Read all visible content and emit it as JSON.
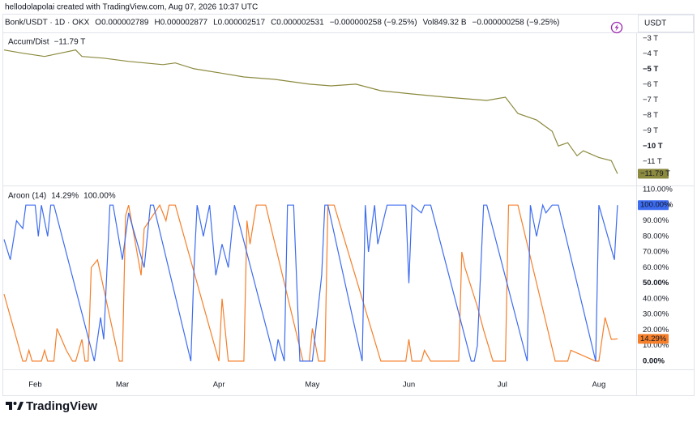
{
  "header": {
    "credit": "hellodolapolai created with TradingView.com, Aug 07, 2026 10:37 UTC",
    "symbol_line": [
      "Bonk/USDT · 1D · OKX",
      "O0.000002789",
      "H0.000002877",
      "L0.000002517",
      "C0.000002531",
      "−0.000000258 (−9.25%)",
      "Vol849.32 B",
      "−0.000000258 (−9.25%)"
    ],
    "currency": "USDT"
  },
  "footer": {
    "brand": "TradingView"
  },
  "chart_data": [
    {
      "type": "line",
      "title": "Accum/Dist",
      "grid": false,
      "xlim": [
        0,
        203
      ],
      "ylim": [
        -12.5,
        -2.7
      ],
      "yticks": [
        {
          "value": -3,
          "label": "−3 T"
        },
        {
          "value": -4,
          "label": "−4 T"
        },
        {
          "value": -5,
          "label": "−5 T",
          "bold": true
        },
        {
          "value": -6,
          "label": "−6 T"
        },
        {
          "value": -7,
          "label": "−7 T"
        },
        {
          "value": -8,
          "label": "−8 T"
        },
        {
          "value": -9,
          "label": "−9 T"
        },
        {
          "value": -10,
          "label": "−10 T",
          "bold": true
        },
        {
          "value": -11,
          "label": "−11 T"
        }
      ],
      "series": [
        {
          "color": "#8c8a3f",
          "last_value_label": "−11.79 T",
          "x": [
            0,
            6,
            13,
            23,
            25,
            32,
            40,
            51,
            55,
            61,
            69,
            77,
            87,
            98,
            105,
            113,
            121,
            131,
            142,
            155,
            161,
            165,
            171,
            176,
            178,
            181,
            184,
            186,
            191,
            195,
            197
          ],
          "values": [
            -3.74,
            -3.95,
            -4.16,
            -3.74,
            -4.16,
            -4.27,
            -4.48,
            -4.69,
            -4.58,
            -4.96,
            -5.22,
            -5.49,
            -5.65,
            -5.96,
            -6.07,
            -5.96,
            -6.39,
            -6.6,
            -6.81,
            -7.02,
            -6.81,
            -7.87,
            -8.29,
            -9.03,
            -9.98,
            -9.77,
            -10.62,
            -10.3,
            -10.73,
            -10.94,
            -11.79
          ]
        }
      ]
    },
    {
      "type": "line",
      "title": "Aroon (14)",
      "grid": false,
      "xlim": [
        0,
        203
      ],
      "ylim": [
        -4.7,
        111
      ],
      "xticks": [
        {
          "value": 10,
          "label": "Feb"
        },
        {
          "value": 38,
          "label": "Mar"
        },
        {
          "value": 69,
          "label": "Apr"
        },
        {
          "value": 99,
          "label": "May"
        },
        {
          "value": 130,
          "label": "Jun"
        },
        {
          "value": 160,
          "label": "Jul"
        },
        {
          "value": 191,
          "label": "Aug"
        }
      ],
      "yticks": [
        {
          "value": 110,
          "label": "110.00%"
        },
        {
          "value": 100,
          "label": "100.00%"
        },
        {
          "value": 90,
          "label": "90.00%"
        },
        {
          "value": 80,
          "label": "80.00%"
        },
        {
          "value": 70,
          "label": "70.00%"
        },
        {
          "value": 60,
          "label": "60.00%"
        },
        {
          "value": 50,
          "label": "50.00%",
          "bold": true
        },
        {
          "value": 40,
          "label": "40.00%"
        },
        {
          "value": 30,
          "label": "30.00%"
        },
        {
          "value": 20,
          "label": "20.00%"
        },
        {
          "value": 10,
          "label": "10.00%"
        },
        {
          "value": 0,
          "label": "0.00%",
          "bold": true
        }
      ],
      "series": [
        {
          "color": "#f57f2a",
          "last_value_label": "14.29%",
          "x": [
            0,
            6,
            7,
            8,
            9,
            12,
            13,
            14,
            16,
            17,
            20,
            22,
            23,
            25,
            26,
            27,
            28,
            30,
            37,
            38,
            39,
            40,
            44,
            45,
            50,
            52,
            53,
            55,
            69,
            70,
            72,
            77,
            78,
            79,
            81,
            84,
            96,
            98,
            99,
            101,
            103,
            104,
            106,
            121,
            129,
            130,
            131,
            134,
            135,
            137,
            146,
            147,
            148,
            152,
            154,
            157,
            161,
            162,
            165,
            177,
            181,
            182,
            190,
            191,
            193,
            195,
            197
          ],
          "values": [
            43,
            0,
            0,
            7,
            0,
            0,
            7,
            0,
            0,
            21,
            7,
            0,
            0,
            14,
            0,
            0,
            60,
            65,
            0,
            0,
            93,
            100,
            55,
            85,
            100,
            90,
            100,
            100,
            0,
            40,
            0,
            0,
            90,
            75,
            100,
            100,
            0,
            0,
            21,
            0,
            0,
            100,
            100,
            0,
            0,
            14,
            0,
            0,
            7,
            0,
            0,
            70,
            60,
            35,
            20,
            0,
            0,
            100,
            100,
            0,
            0,
            7,
            0,
            0,
            28,
            14,
            14.29
          ]
        },
        {
          "color": "#3d6cf0",
          "last_value_label": "100.00%",
          "x": [
            0,
            2,
            4,
            6,
            7,
            10,
            11,
            12,
            14,
            15,
            16,
            29,
            31,
            32,
            34,
            35,
            38,
            40,
            45,
            47,
            48,
            60,
            61,
            62,
            64,
            66,
            68,
            70,
            72,
            74,
            87,
            88,
            90,
            91,
            93,
            95,
            99,
            102,
            103,
            104,
            115,
            116,
            117,
            119,
            120,
            123,
            129,
            130,
            131,
            134,
            135,
            137,
            150,
            151,
            152,
            154,
            155,
            168,
            169,
            171,
            173,
            174,
            176,
            178,
            190,
            191,
            196,
            197
          ],
          "values": [
            78,
            65,
            90,
            85,
            100,
            100,
            80,
            100,
            80,
            100,
            100,
            0,
            28,
            14,
            100,
            100,
            65,
            95,
            60,
            100,
            100,
            0,
            60,
            100,
            80,
            100,
            55,
            75,
            60,
            100,
            0,
            14,
            0,
            100,
            100,
            0,
            0,
            55,
            100,
            100,
            0,
            100,
            70,
            100,
            75,
            100,
            100,
            50,
            100,
            95,
            100,
            100,
            0,
            0,
            10,
            100,
            100,
            0,
            100,
            80,
            100,
            95,
            100,
            100,
            0,
            100,
            65,
            100
          ]
        }
      ]
    }
  ]
}
